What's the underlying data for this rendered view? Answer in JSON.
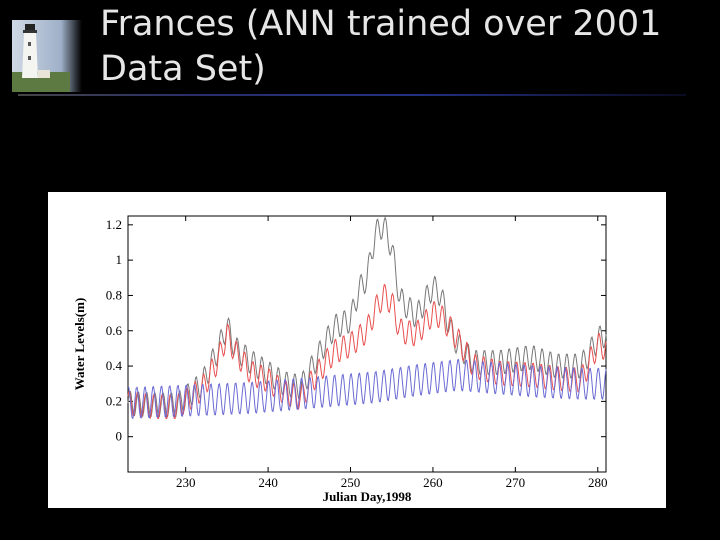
{
  "slide": {
    "title": "Frances (ANN trained over 2001 Data Set)"
  },
  "chart_data": {
    "type": "line",
    "xlabel": "Julian Day,1998",
    "ylabel": "Water Levels(m)",
    "xlim": [
      223,
      281
    ],
    "ylim": [
      -0.2,
      1.25
    ],
    "xticks": [
      230,
      240,
      250,
      260,
      270,
      280
    ],
    "yticks": [
      0,
      0.2,
      0.4,
      0.6,
      0.8,
      1,
      1.2
    ],
    "ytick_labels": [
      "0",
      "0.2",
      "0.4",
      "0.6",
      "0.8",
      "1",
      "1.2"
    ],
    "series": [
      {
        "color": "#777777",
        "x": [
          223,
          226,
          229,
          232,
          234,
          235,
          236,
          238,
          240,
          242,
          244,
          246,
          248,
          250,
          251,
          252,
          253,
          254,
          255,
          256,
          258,
          260,
          261,
          262,
          263,
          265,
          268,
          272,
          275,
          278,
          280,
          281
        ],
        "y": [
          0.19,
          0.18,
          0.18,
          0.3,
          0.5,
          0.63,
          0.5,
          0.42,
          0.36,
          0.3,
          0.28,
          0.45,
          0.62,
          0.66,
          0.83,
          0.9,
          1.15,
          1.2,
          1.07,
          0.78,
          0.68,
          0.85,
          0.8,
          0.62,
          0.52,
          0.42,
          0.42,
          0.45,
          0.4,
          0.4,
          0.55,
          0.58
        ]
      },
      {
        "color": "#e85050",
        "x": [
          223,
          226,
          229,
          232,
          234,
          235,
          236,
          238,
          240,
          242,
          244,
          246,
          248,
          250,
          251,
          252,
          253,
          254,
          255,
          256,
          258,
          260,
          261,
          262,
          263,
          265,
          268,
          272,
          275,
          278,
          280,
          281
        ],
        "y": [
          0.19,
          0.17,
          0.17,
          0.27,
          0.44,
          0.58,
          0.48,
          0.36,
          0.32,
          0.25,
          0.22,
          0.36,
          0.48,
          0.52,
          0.56,
          0.6,
          0.72,
          0.8,
          0.76,
          0.6,
          0.58,
          0.7,
          0.68,
          0.62,
          0.55,
          0.4,
          0.36,
          0.35,
          0.33,
          0.32,
          0.52,
          0.5
        ]
      },
      {
        "color": "#6b6bd4",
        "x": [
          223,
          228,
          233,
          238,
          243,
          248,
          253,
          258,
          263,
          268,
          273,
          278,
          281
        ],
        "y": [
          0.19,
          0.2,
          0.21,
          0.22,
          0.24,
          0.26,
          0.28,
          0.32,
          0.35,
          0.33,
          0.31,
          0.3,
          0.3
        ]
      }
    ]
  }
}
